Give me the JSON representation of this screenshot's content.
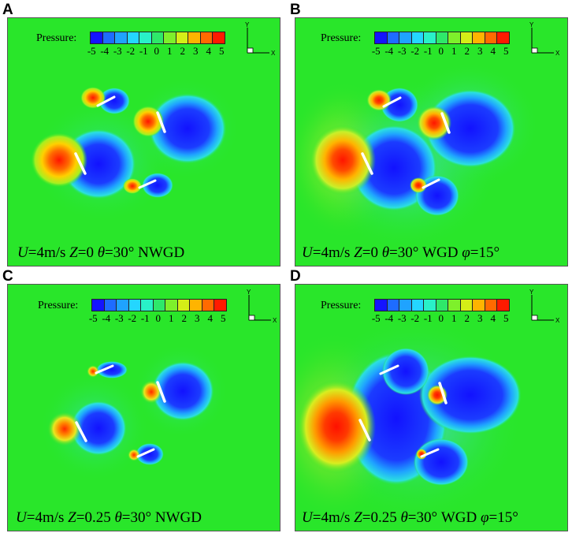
{
  "legend": {
    "title": "Pressure:",
    "ticks": [
      "-5",
      "-4",
      "-3",
      "-2",
      "-1",
      "0",
      "1",
      "2",
      "3",
      "4",
      "5"
    ],
    "colors": [
      "#1414ff",
      "#1e6cff",
      "#1fa3ff",
      "#24d6ff",
      "#29f1c8",
      "#2ee86a",
      "#7ef02b",
      "#d5ee17",
      "#ffb400",
      "#ff6a00",
      "#ff1a00"
    ]
  },
  "axes": {
    "x_label": "X",
    "y_label": "Y"
  },
  "background_color": "#29e62a",
  "panels": [
    {
      "letter": "A",
      "caption": {
        "u": "U",
        "u_val": "=4m/s ",
        "z": "Z",
        "z_val": "=0  ",
        "theta": "θ",
        "rest": "=30° NWGD",
        "phi": "",
        "phi_val": ""
      }
    },
    {
      "letter": "B",
      "caption": {
        "u": "U",
        "u_val": "=4m/s ",
        "z": "Z",
        "z_val": "=0  ",
        "theta": "θ",
        "rest": "=30° WGD ",
        "phi": "φ",
        "phi_val": "=15°"
      }
    },
    {
      "letter": "C",
      "caption": {
        "u": "U",
        "u_val": "=4m/s ",
        "z": "Z",
        "z_val": "=0.25  ",
        "theta": "θ",
        "rest": "=30° NWGD",
        "phi": "",
        "phi_val": ""
      }
    },
    {
      "letter": "D",
      "caption": {
        "u": "U",
        "u_val": "=4m/s ",
        "z": "Z",
        "z_val": "=0.25  ",
        "theta": "θ",
        "rest": "=30° WGD ",
        "phi": "φ",
        "phi_val": "=15°"
      }
    }
  ]
}
